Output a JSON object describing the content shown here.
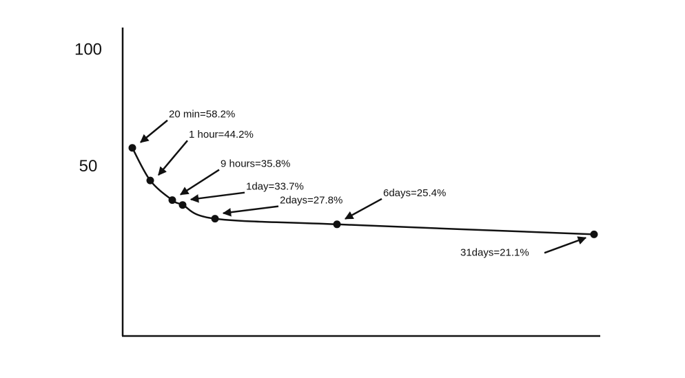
{
  "chart_data": {
    "type": "line",
    "values": [
      58.2,
      44.2,
      35.8,
      33.7,
      27.8,
      25.4,
      21.1
    ],
    "value_labels": [
      "20 min=58.2%",
      "1 hour=44.2%",
      "9 hours=35.8%",
      "1day=33.7%",
      "2days=27.8%",
      "6days=25.4%",
      "31days=21.1%"
    ],
    "color": "#111111",
    "ylim": [
      -22.5,
      109.8
    ],
    "yticks": [
      50,
      100
    ]
  }
}
